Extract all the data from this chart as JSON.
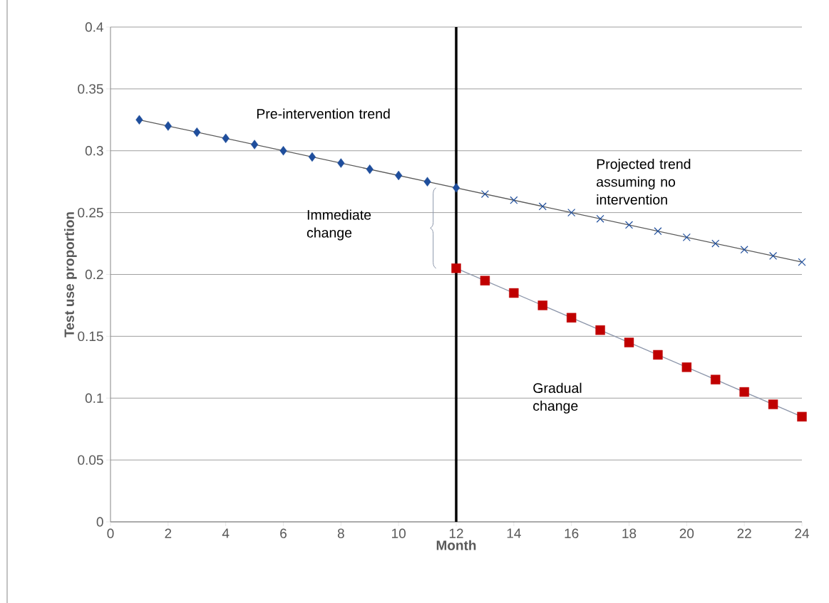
{
  "chart_data": {
    "type": "scatter",
    "xlabel": "Month",
    "ylabel": "Test use proportion",
    "xlim": [
      0,
      24
    ],
    "xticks": [
      0,
      2,
      4,
      6,
      8,
      10,
      12,
      14,
      16,
      18,
      20,
      22,
      24
    ],
    "ylim": [
      0,
      0.4
    ],
    "yticks": [
      0,
      0.05,
      0.1,
      0.15,
      0.2,
      0.25,
      0.3,
      0.35,
      0.4
    ],
    "grid": "y",
    "series": [
      {
        "type": "line",
        "marker": "none",
        "color": "#595959",
        "x": [
          1,
          24
        ],
        "values": [
          0.325,
          0.21
        ]
      },
      {
        "type": "line",
        "marker": "none",
        "color": "#8c96aa",
        "x": [
          12,
          24
        ],
        "values": [
          0.205,
          0.085
        ]
      },
      {
        "marker": "diamond",
        "color": "#1f4e9c",
        "x": [
          1,
          2,
          3,
          4,
          5,
          6,
          7,
          8,
          9,
          10,
          11,
          12
        ],
        "values": [
          0.325,
          0.32,
          0.315,
          0.31,
          0.305,
          0.3,
          0.295,
          0.29,
          0.285,
          0.28,
          0.275,
          0.27
        ]
      },
      {
        "marker": "cross",
        "color": "#1f4e9c",
        "x": [
          13,
          14,
          15,
          16,
          17,
          18,
          19,
          20,
          21,
          22,
          23,
          24
        ],
        "values": [
          0.265,
          0.26,
          0.255,
          0.25,
          0.245,
          0.24,
          0.235,
          0.23,
          0.225,
          0.22,
          0.215,
          0.21
        ]
      },
      {
        "marker": "square",
        "color": "#c00000",
        "x": [
          12,
          13,
          14,
          15,
          16,
          17,
          18,
          19,
          20,
          21,
          22,
          23,
          24
        ],
        "values": [
          0.205,
          0.195,
          0.185,
          0.175,
          0.165,
          0.155,
          0.145,
          0.135,
          0.125,
          0.115,
          0.105,
          0.095,
          0.085
        ]
      }
    ],
    "ref_lines": [
      {
        "axis": "x",
        "value": 12,
        "color": "#000000"
      }
    ],
    "annotations": [
      "Pre-intervention trend",
      "Projected trend assuming no intervention",
      "Immediate change",
      "Gradual change"
    ]
  }
}
